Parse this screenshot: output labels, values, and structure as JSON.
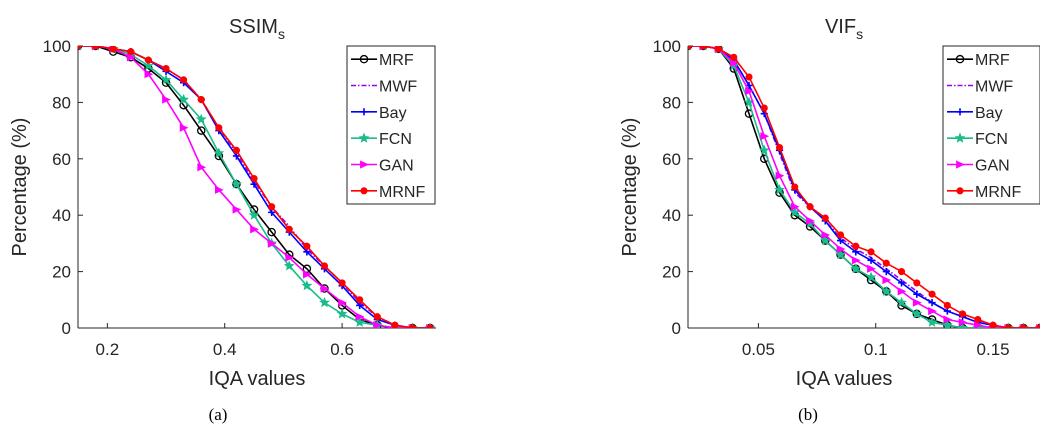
{
  "chart_data": [
    {
      "type": "line",
      "title": "SSIM",
      "title_subscript": "s",
      "xlabel": "IQA values",
      "ylabel": "Percentage (%)",
      "caption": "(a)",
      "xlim": [
        0.15,
        0.76
      ],
      "ylim": [
        0,
        100
      ],
      "xticks": [
        0.2,
        0.4,
        0.6
      ],
      "xtick_labels": [
        "0.2",
        "0.4",
        "0.6"
      ],
      "yticks": [
        0,
        20,
        40,
        60,
        80,
        100
      ],
      "ytick_labels": [
        "0",
        "20",
        "40",
        "60",
        "80",
        "100"
      ],
      "grid": false,
      "legend_position": "top-right",
      "series": [
        {
          "name": "MRF",
          "color": "#000000",
          "marker": "circle",
          "dash": "solid",
          "x": [
            0.15,
            0.18,
            0.21,
            0.24,
            0.27,
            0.3,
            0.33,
            0.36,
            0.39,
            0.42,
            0.45,
            0.48,
            0.51,
            0.54,
            0.57,
            0.6,
            0.63,
            0.66,
            0.69,
            0.72,
            0.75
          ],
          "y": [
            100,
            100,
            98,
            96,
            92,
            87,
            79,
            70,
            61,
            51,
            42,
            34,
            26,
            21,
            14,
            8,
            3,
            1,
            0,
            0,
            0
          ]
        },
        {
          "name": "MWF",
          "color": "#9900ff",
          "marker": "none",
          "dash": "dashdot",
          "x": [
            0.15,
            0.18,
            0.21,
            0.24,
            0.27,
            0.3,
            0.33,
            0.36,
            0.39,
            0.42,
            0.45,
            0.48,
            0.51,
            0.54,
            0.57,
            0.6,
            0.63,
            0.66,
            0.69,
            0.72,
            0.75
          ],
          "y": [
            100,
            100,
            99,
            98,
            95,
            92,
            88,
            81,
            71,
            62,
            52,
            43,
            36,
            28,
            22,
            16,
            9,
            4,
            1,
            0,
            0
          ]
        },
        {
          "name": "Bay",
          "color": "#0000ff",
          "marker": "plus",
          "dash": "solid",
          "x": [
            0.15,
            0.18,
            0.21,
            0.24,
            0.27,
            0.3,
            0.33,
            0.36,
            0.39,
            0.42,
            0.45,
            0.48,
            0.51,
            0.54,
            0.57,
            0.6,
            0.63,
            0.66,
            0.69,
            0.72,
            0.75
          ],
          "y": [
            100,
            100,
            99,
            98,
            95,
            91,
            87,
            81,
            70,
            61,
            51,
            41,
            34,
            27,
            21,
            15,
            8,
            3,
            1,
            0,
            0
          ]
        },
        {
          "name": "FCN",
          "color": "#1abc8c",
          "marker": "star",
          "dash": "solid",
          "x": [
            0.15,
            0.18,
            0.21,
            0.24,
            0.27,
            0.3,
            0.33,
            0.36,
            0.39,
            0.42,
            0.45,
            0.48,
            0.51,
            0.54,
            0.57,
            0.6,
            0.63,
            0.66,
            0.69,
            0.72,
            0.75
          ],
          "y": [
            100,
            100,
            99,
            97,
            93,
            88,
            81,
            74,
            62,
            51,
            40,
            30,
            22,
            15,
            9,
            5,
            2,
            1,
            0,
            0,
            0
          ]
        },
        {
          "name": "GAN",
          "color": "#ff00ff",
          "marker": "triangle-right",
          "dash": "solid",
          "x": [
            0.15,
            0.18,
            0.21,
            0.24,
            0.27,
            0.3,
            0.33,
            0.36,
            0.39,
            0.42,
            0.45,
            0.48,
            0.51,
            0.54,
            0.57,
            0.6,
            0.63,
            0.66,
            0.69,
            0.72,
            0.75
          ],
          "y": [
            100,
            100,
            99,
            96,
            90,
            81,
            71,
            57,
            49,
            42,
            35,
            30,
            25,
            19,
            14,
            9,
            4,
            1,
            0,
            0,
            0
          ]
        },
        {
          "name": "MRNF",
          "color": "#ff0000",
          "marker": "dot",
          "dash": "solid",
          "x": [
            0.15,
            0.18,
            0.21,
            0.24,
            0.27,
            0.3,
            0.33,
            0.36,
            0.39,
            0.42,
            0.45,
            0.48,
            0.51,
            0.54,
            0.57,
            0.6,
            0.63,
            0.66,
            0.69,
            0.72,
            0.75
          ],
          "y": [
            100,
            100,
            99,
            98,
            95,
            92,
            88,
            81,
            71,
            63,
            53,
            43,
            35,
            29,
            22,
            16,
            10,
            4,
            1,
            0,
            0
          ]
        }
      ]
    },
    {
      "type": "line",
      "title": "VIF",
      "title_subscript": "s",
      "xlabel": "IQA values",
      "ylabel": "Percentage (%)",
      "caption": "(b)",
      "xlim": [
        0.02,
        0.17
      ],
      "ylim": [
        0,
        100
      ],
      "xticks": [
        0.05,
        0.1,
        0.15
      ],
      "xtick_labels": [
        "0.05",
        "0.1",
        "0.15"
      ],
      "yticks": [
        0,
        20,
        40,
        60,
        80,
        100
      ],
      "ytick_labels": [
        "0",
        "20",
        "40",
        "60",
        "80",
        "100"
      ],
      "grid": false,
      "legend_position": "top-right",
      "series": [
        {
          "name": "MRF",
          "color": "#000000",
          "marker": "circle",
          "dash": "solid",
          "x": [
            0.02,
            0.0265,
            0.033,
            0.0395,
            0.046,
            0.0525,
            0.059,
            0.0655,
            0.072,
            0.0785,
            0.085,
            0.0915,
            0.098,
            0.1045,
            0.111,
            0.1175,
            0.124,
            0.1305,
            0.137,
            0.1435,
            0.15,
            0.1565,
            0.163,
            0.17
          ],
          "y": [
            100,
            100,
            99,
            92,
            76,
            60,
            48,
            40,
            36,
            31,
            26,
            21,
            17,
            13,
            8,
            5,
            3,
            1,
            0,
            0,
            0,
            0,
            0,
            0
          ]
        },
        {
          "name": "MWF",
          "color": "#9900ff",
          "marker": "none",
          "dash": "dashdot",
          "x": [
            0.02,
            0.0265,
            0.033,
            0.0395,
            0.046,
            0.0525,
            0.059,
            0.0655,
            0.072,
            0.0785,
            0.085,
            0.0915,
            0.098,
            0.1045,
            0.111,
            0.1175,
            0.124,
            0.1305,
            0.137,
            0.1435,
            0.15,
            0.1565,
            0.163,
            0.17
          ],
          "y": [
            100,
            100,
            99,
            95,
            86,
            76,
            62,
            48,
            43,
            38,
            32,
            28,
            25,
            21,
            17,
            13,
            9,
            6,
            4,
            2,
            1,
            0,
            0,
            0
          ]
        },
        {
          "name": "Bay",
          "color": "#0000ff",
          "marker": "plus",
          "dash": "solid",
          "x": [
            0.02,
            0.0265,
            0.033,
            0.0395,
            0.046,
            0.0525,
            0.059,
            0.0655,
            0.072,
            0.0785,
            0.085,
            0.0915,
            0.098,
            0.1045,
            0.111,
            0.1175,
            0.124,
            0.1305,
            0.137,
            0.1435,
            0.15,
            0.1565,
            0.163,
            0.17
          ],
          "y": [
            100,
            100,
            99,
            95,
            86,
            76,
            63,
            49,
            43,
            38,
            31,
            27,
            24,
            20,
            16,
            12,
            9,
            6,
            4,
            2,
            1,
            0,
            0,
            0
          ]
        },
        {
          "name": "FCN",
          "color": "#1abc8c",
          "marker": "star",
          "dash": "solid",
          "x": [
            0.02,
            0.0265,
            0.033,
            0.0395,
            0.046,
            0.0525,
            0.059,
            0.0655,
            0.072,
            0.0785,
            0.085,
            0.0915,
            0.098,
            0.1045,
            0.111,
            0.1175,
            0.124,
            0.1305,
            0.137,
            0.1435,
            0.15,
            0.1565,
            0.163,
            0.17
          ],
          "y": [
            100,
            100,
            99,
            93,
            80,
            63,
            49,
            41,
            37,
            31,
            26,
            21,
            18,
            13,
            9,
            5,
            2,
            1,
            0,
            0,
            0,
            0,
            0,
            0
          ]
        },
        {
          "name": "GAN",
          "color": "#ff00ff",
          "marker": "triangle-right",
          "dash": "solid",
          "x": [
            0.02,
            0.0265,
            0.033,
            0.0395,
            0.046,
            0.0525,
            0.059,
            0.0655,
            0.072,
            0.0785,
            0.085,
            0.0915,
            0.098,
            0.1045,
            0.111,
            0.1175,
            0.124,
            0.1305,
            0.137,
            0.1435,
            0.15,
            0.1565,
            0.163,
            0.17
          ],
          "y": [
            100,
            100,
            99,
            94,
            84,
            68,
            54,
            43,
            38,
            33,
            28,
            24,
            21,
            17,
            13,
            9,
            6,
            3,
            2,
            1,
            0,
            0,
            0,
            0
          ]
        },
        {
          "name": "MRNF",
          "color": "#ff0000",
          "marker": "dot",
          "dash": "solid",
          "x": [
            0.02,
            0.0265,
            0.033,
            0.0395,
            0.046,
            0.0525,
            0.059,
            0.0655,
            0.072,
            0.0785,
            0.085,
            0.0915,
            0.098,
            0.1045,
            0.111,
            0.1175,
            0.124,
            0.1305,
            0.137,
            0.1435,
            0.15,
            0.1565,
            0.163,
            0.17
          ],
          "y": [
            100,
            100,
            99,
            96,
            89,
            78,
            64,
            50,
            43,
            39,
            33,
            29,
            27,
            23,
            20,
            16,
            12,
            8,
            5,
            3,
            1,
            0,
            0,
            0
          ]
        }
      ]
    }
  ]
}
